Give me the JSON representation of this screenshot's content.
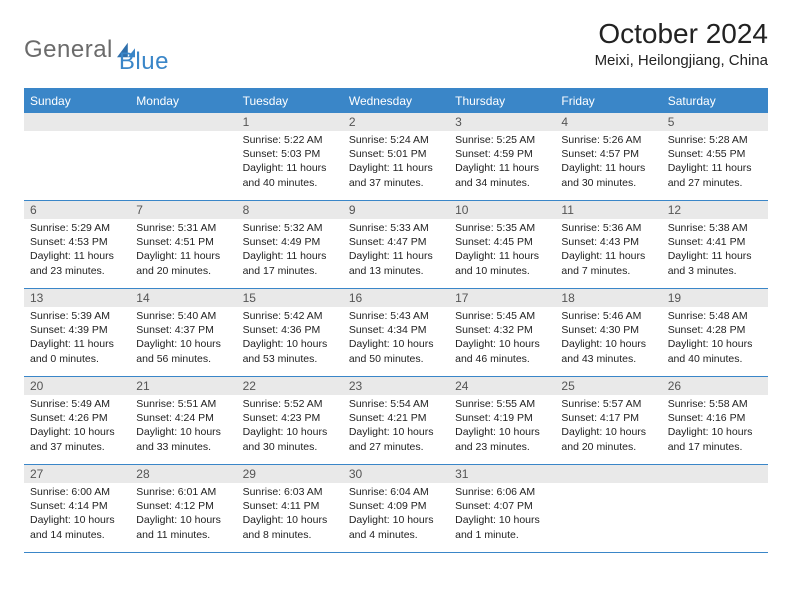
{
  "brand": {
    "part1": "General",
    "part2": "Blue"
  },
  "title": "October 2024",
  "location": "Meixi, Heilongjiang, China",
  "colors": {
    "accent": "#3a86c8",
    "header_bg": "#3a86c8",
    "header_text": "#ffffff",
    "daynum_bg": "#e9e9e9",
    "border": "#3a86c8",
    "text": "#222222",
    "logo_gray": "#6b6b6b"
  },
  "weekdays": [
    "Sunday",
    "Monday",
    "Tuesday",
    "Wednesday",
    "Thursday",
    "Friday",
    "Saturday"
  ],
  "weeks": [
    [
      {
        "empty": true
      },
      {
        "empty": true
      },
      {
        "n": "1",
        "sr": "Sunrise: 5:22 AM",
        "ss": "Sunset: 5:03 PM",
        "dl": "Daylight: 11 hours and 40 minutes."
      },
      {
        "n": "2",
        "sr": "Sunrise: 5:24 AM",
        "ss": "Sunset: 5:01 PM",
        "dl": "Daylight: 11 hours and 37 minutes."
      },
      {
        "n": "3",
        "sr": "Sunrise: 5:25 AM",
        "ss": "Sunset: 4:59 PM",
        "dl": "Daylight: 11 hours and 34 minutes."
      },
      {
        "n": "4",
        "sr": "Sunrise: 5:26 AM",
        "ss": "Sunset: 4:57 PM",
        "dl": "Daylight: 11 hours and 30 minutes."
      },
      {
        "n": "5",
        "sr": "Sunrise: 5:28 AM",
        "ss": "Sunset: 4:55 PM",
        "dl": "Daylight: 11 hours and 27 minutes."
      }
    ],
    [
      {
        "n": "6",
        "sr": "Sunrise: 5:29 AM",
        "ss": "Sunset: 4:53 PM",
        "dl": "Daylight: 11 hours and 23 minutes."
      },
      {
        "n": "7",
        "sr": "Sunrise: 5:31 AM",
        "ss": "Sunset: 4:51 PM",
        "dl": "Daylight: 11 hours and 20 minutes."
      },
      {
        "n": "8",
        "sr": "Sunrise: 5:32 AM",
        "ss": "Sunset: 4:49 PM",
        "dl": "Daylight: 11 hours and 17 minutes."
      },
      {
        "n": "9",
        "sr": "Sunrise: 5:33 AM",
        "ss": "Sunset: 4:47 PM",
        "dl": "Daylight: 11 hours and 13 minutes."
      },
      {
        "n": "10",
        "sr": "Sunrise: 5:35 AM",
        "ss": "Sunset: 4:45 PM",
        "dl": "Daylight: 11 hours and 10 minutes."
      },
      {
        "n": "11",
        "sr": "Sunrise: 5:36 AM",
        "ss": "Sunset: 4:43 PM",
        "dl": "Daylight: 11 hours and 7 minutes."
      },
      {
        "n": "12",
        "sr": "Sunrise: 5:38 AM",
        "ss": "Sunset: 4:41 PM",
        "dl": "Daylight: 11 hours and 3 minutes."
      }
    ],
    [
      {
        "n": "13",
        "sr": "Sunrise: 5:39 AM",
        "ss": "Sunset: 4:39 PM",
        "dl": "Daylight: 11 hours and 0 minutes."
      },
      {
        "n": "14",
        "sr": "Sunrise: 5:40 AM",
        "ss": "Sunset: 4:37 PM",
        "dl": "Daylight: 10 hours and 56 minutes."
      },
      {
        "n": "15",
        "sr": "Sunrise: 5:42 AM",
        "ss": "Sunset: 4:36 PM",
        "dl": "Daylight: 10 hours and 53 minutes."
      },
      {
        "n": "16",
        "sr": "Sunrise: 5:43 AM",
        "ss": "Sunset: 4:34 PM",
        "dl": "Daylight: 10 hours and 50 minutes."
      },
      {
        "n": "17",
        "sr": "Sunrise: 5:45 AM",
        "ss": "Sunset: 4:32 PM",
        "dl": "Daylight: 10 hours and 46 minutes."
      },
      {
        "n": "18",
        "sr": "Sunrise: 5:46 AM",
        "ss": "Sunset: 4:30 PM",
        "dl": "Daylight: 10 hours and 43 minutes."
      },
      {
        "n": "19",
        "sr": "Sunrise: 5:48 AM",
        "ss": "Sunset: 4:28 PM",
        "dl": "Daylight: 10 hours and 40 minutes."
      }
    ],
    [
      {
        "n": "20",
        "sr": "Sunrise: 5:49 AM",
        "ss": "Sunset: 4:26 PM",
        "dl": "Daylight: 10 hours and 37 minutes."
      },
      {
        "n": "21",
        "sr": "Sunrise: 5:51 AM",
        "ss": "Sunset: 4:24 PM",
        "dl": "Daylight: 10 hours and 33 minutes."
      },
      {
        "n": "22",
        "sr": "Sunrise: 5:52 AM",
        "ss": "Sunset: 4:23 PM",
        "dl": "Daylight: 10 hours and 30 minutes."
      },
      {
        "n": "23",
        "sr": "Sunrise: 5:54 AM",
        "ss": "Sunset: 4:21 PM",
        "dl": "Daylight: 10 hours and 27 minutes."
      },
      {
        "n": "24",
        "sr": "Sunrise: 5:55 AM",
        "ss": "Sunset: 4:19 PM",
        "dl": "Daylight: 10 hours and 23 minutes."
      },
      {
        "n": "25",
        "sr": "Sunrise: 5:57 AM",
        "ss": "Sunset: 4:17 PM",
        "dl": "Daylight: 10 hours and 20 minutes."
      },
      {
        "n": "26",
        "sr": "Sunrise: 5:58 AM",
        "ss": "Sunset: 4:16 PM",
        "dl": "Daylight: 10 hours and 17 minutes."
      }
    ],
    [
      {
        "n": "27",
        "sr": "Sunrise: 6:00 AM",
        "ss": "Sunset: 4:14 PM",
        "dl": "Daylight: 10 hours and 14 minutes."
      },
      {
        "n": "28",
        "sr": "Sunrise: 6:01 AM",
        "ss": "Sunset: 4:12 PM",
        "dl": "Daylight: 10 hours and 11 minutes."
      },
      {
        "n": "29",
        "sr": "Sunrise: 6:03 AM",
        "ss": "Sunset: 4:11 PM",
        "dl": "Daylight: 10 hours and 8 minutes."
      },
      {
        "n": "30",
        "sr": "Sunrise: 6:04 AM",
        "ss": "Sunset: 4:09 PM",
        "dl": "Daylight: 10 hours and 4 minutes."
      },
      {
        "n": "31",
        "sr": "Sunrise: 6:06 AM",
        "ss": "Sunset: 4:07 PM",
        "dl": "Daylight: 10 hours and 1 minute."
      },
      {
        "empty": true
      },
      {
        "empty": true
      }
    ]
  ]
}
